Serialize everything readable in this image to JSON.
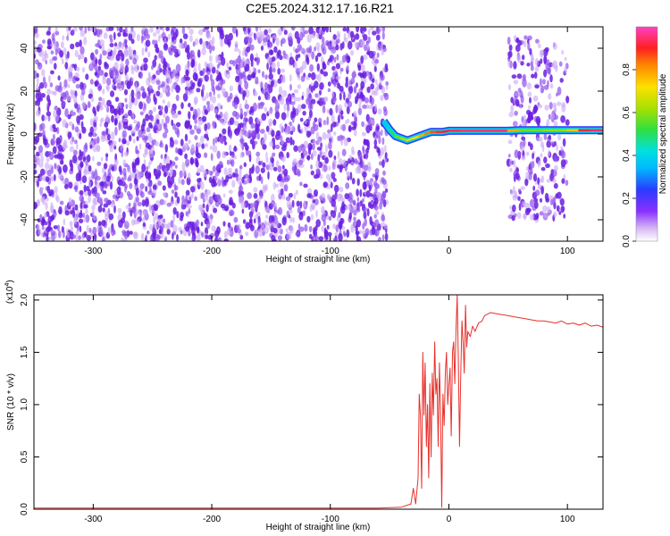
{
  "title": "C2E5.2024.312.17.16.R21",
  "chart_data": [
    {
      "type": "heatmap",
      "xlabel": "Height of straight line (km)",
      "ylabel": "Frequency (Hz)",
      "xlim": [
        -350,
        130
      ],
      "ylim": [
        -50,
        50
      ],
      "x_ticks": [
        "-300",
        "-200",
        "-100",
        "0",
        "100"
      ],
      "x_tick_values": [
        -300,
        -200,
        -100,
        0,
        100
      ],
      "y_ticks": [
        "-40",
        "-20",
        "0",
        "20",
        "40"
      ],
      "y_tick_values": [
        -40,
        -20,
        0,
        20,
        40
      ],
      "colorbar": {
        "label": "Normalized spectral amplitude",
        "range": [
          0,
          1
        ],
        "ticks": [
          "0.0",
          "0.2",
          "0.4",
          "0.6",
          "0.8"
        ],
        "tick_values": [
          0.0,
          0.2,
          0.4,
          0.6,
          0.8
        ]
      },
      "regions": [
        {
          "x_from": -350,
          "x_to": -52,
          "freq_from": -50,
          "freq_to": 50,
          "amplitude": "low",
          "color": "#7a2fe0"
        },
        {
          "x_from": 50,
          "x_to": 100,
          "freq_from": -40,
          "freq_to": 45,
          "amplitude": "low",
          "color": "#a060f0"
        }
      ],
      "ridge": {
        "x": [
          -55,
          -50,
          -45,
          -40,
          -35,
          -30,
          -25,
          -20,
          -15,
          -10,
          -5,
          0,
          10,
          20,
          30,
          40,
          50,
          60,
          70,
          80,
          90,
          100,
          110,
          120,
          130
        ],
        "freq": [
          6,
          2,
          -1,
          -2,
          -3,
          -2,
          -1,
          0,
          1,
          1,
          1,
          1.5,
          1.5,
          1.5,
          1.5,
          1.5,
          1.5,
          1.8,
          1.8,
          1.8,
          1.8,
          1.8,
          1.8,
          1.8,
          1.8
        ],
        "amplitude": [
          0.3,
          0.45,
          0.55,
          0.6,
          0.65,
          0.7,
          0.75,
          0.8,
          0.85,
          0.88,
          0.9,
          0.92,
          0.95,
          0.95,
          0.95,
          0.95,
          0.95,
          0.6,
          0.55,
          0.6,
          0.6,
          0.6,
          0.9,
          0.95,
          0.95
        ]
      }
    },
    {
      "type": "line",
      "xlabel": "Height of straight line (km)",
      "ylabel": "SNR (10 * v/v)",
      "y_multiplier": "(x10",
      "y_multiplier_exp": "4",
      "xlim": [
        -350,
        130
      ],
      "ylim": [
        0,
        2.05
      ],
      "x_ticks": [
        "-300",
        "-200",
        "-100",
        "0",
        "100"
      ],
      "x_tick_values": [
        -300,
        -200,
        -100,
        0,
        100
      ],
      "y_ticks": [
        "0.0",
        "0.5",
        "1.0",
        "1.5",
        "2.0"
      ],
      "y_tick_values": [
        0.0,
        0.5,
        1.0,
        1.5,
        2.0
      ],
      "series": [
        {
          "color": "#e8302a",
          "x": [
            -350,
            -300,
            -250,
            -200,
            -150,
            -100,
            -60,
            -40,
            -32,
            -30,
            -28,
            -26,
            -25,
            -24,
            -23,
            -22,
            -21,
            -20,
            -19,
            -18,
            -17,
            -16,
            -15,
            -14,
            -13,
            -12,
            -11,
            -10,
            -9,
            -8,
            -7,
            -6,
            -5,
            -4,
            -3,
            -2,
            -1,
            0,
            1,
            2,
            3,
            4,
            5,
            6,
            7,
            8,
            9,
            10,
            11,
            12,
            13,
            14,
            15,
            16,
            18,
            20,
            22,
            25,
            28,
            30,
            35,
            40,
            45,
            50,
            55,
            60,
            65,
            70,
            75,
            80,
            85,
            90,
            95,
            100,
            105,
            110,
            115,
            120,
            125,
            130
          ],
          "y": [
            0.01,
            0.01,
            0.01,
            0.01,
            0.01,
            0.01,
            0.01,
            0.02,
            0.05,
            0.2,
            0.05,
            0.3,
            1.1,
            0.9,
            0.2,
            1.5,
            0.9,
            1.4,
            0.6,
            1.0,
            0.3,
            1.2,
            0.5,
            1.3,
            0.9,
            1.6,
            1.1,
            1.25,
            0.6,
            1.4,
            0.9,
            0.02,
            1.1,
            0.8,
            1.3,
            1.5,
            1.0,
            1.2,
            1.35,
            0.7,
            1.5,
            1.6,
            1.2,
            1.7,
            2.05,
            1.4,
            0.6,
            1.3,
            1.8,
            1.6,
            1.3,
            1.95,
            1.55,
            1.7,
            1.65,
            1.75,
            1.7,
            1.78,
            1.8,
            1.85,
            1.88,
            1.87,
            1.86,
            1.85,
            1.84,
            1.83,
            1.82,
            1.81,
            1.8,
            1.8,
            1.79,
            1.78,
            1.8,
            1.77,
            1.78,
            1.76,
            1.78,
            1.75,
            1.76,
            1.74
          ]
        }
      ]
    }
  ]
}
